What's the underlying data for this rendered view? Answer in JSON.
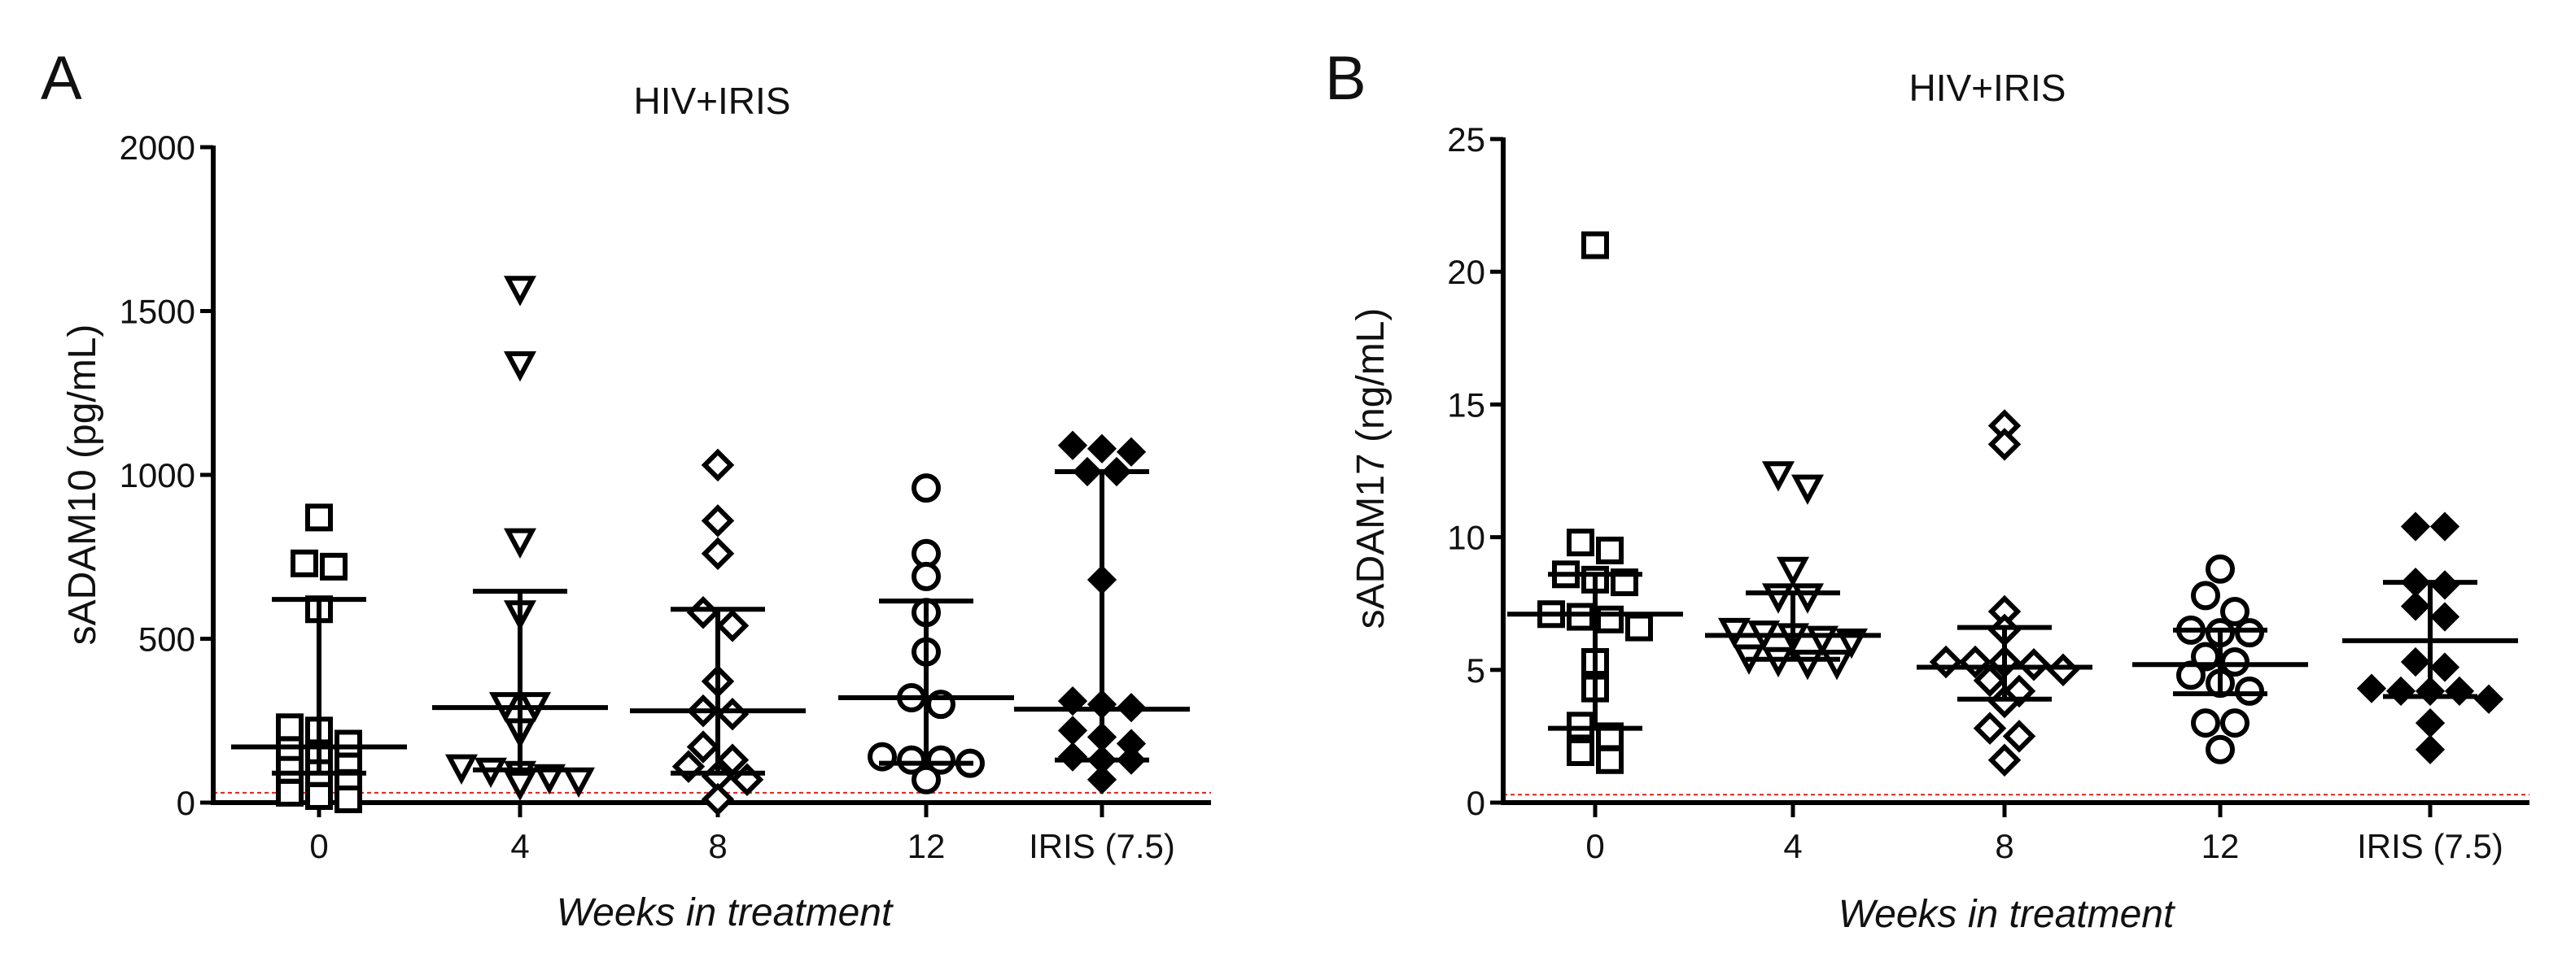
{
  "figure": {
    "panels": [
      {
        "letter": "A"
      },
      {
        "letter": "B"
      }
    ]
  },
  "chart_data": [
    {
      "type": "scatter",
      "panel": "A",
      "title": "HIV+IRIS",
      "xlabel": "Weeks in treatment",
      "ylabel": "sADAM10 (pg/mL)",
      "categories": [
        "0",
        "4",
        "8",
        "12",
        "IRIS (7.5)"
      ],
      "markers": [
        "square",
        "triangle-down",
        "diamond",
        "circle",
        "diamond-filled"
      ],
      "ylim": [
        0,
        2000
      ],
      "yticks": [
        0,
        500,
        1000,
        1500,
        2000
      ],
      "threshold": 30,
      "threshold_color": "#e0201b",
      "series": [
        {
          "category": "0",
          "values": [
            870,
            730,
            720,
            590,
            220,
            230,
            180,
            160,
            150,
            110,
            100,
            90,
            60,
            30,
            20,
            10
          ],
          "median": 170,
          "iqr": [
            90,
            620
          ]
        },
        {
          "category": "4",
          "values": [
            1570,
            1340,
            800,
            580,
            300,
            300,
            220,
            110,
            100,
            90,
            80,
            70,
            60
          ],
          "median": 290,
          "iqr": [
            100,
            645
          ]
        },
        {
          "category": "8",
          "values": [
            1030,
            860,
            760,
            580,
            540,
            370,
            280,
            270,
            170,
            130,
            110,
            80,
            70,
            10
          ],
          "median": 280,
          "iqr": [
            90,
            590
          ]
        },
        {
          "category": "12",
          "values": [
            960,
            760,
            690,
            580,
            460,
            320,
            300,
            140,
            130,
            130,
            120,
            70
          ],
          "median": 320,
          "iqr": [
            120,
            615
          ]
        },
        {
          "category": "IRIS (7.5)",
          "values": [
            1080,
            1070,
            1010,
            1010,
            1090,
            680,
            310,
            300,
            290,
            220,
            200,
            180,
            140,
            130,
            130,
            70
          ],
          "median": 285,
          "iqr": [
            130,
            1010
          ]
        }
      ]
    },
    {
      "type": "scatter",
      "panel": "B",
      "title": "HIV+IRIS",
      "xlabel": "Weeks in treatment",
      "ylabel": "sADAM17 (ng/mL)",
      "categories": [
        "0",
        "4",
        "8",
        "12",
        "IRIS (7.5)"
      ],
      "markers": [
        "square",
        "triangle-down",
        "diamond",
        "circle",
        "diamond-filled"
      ],
      "ylim": [
        0,
        25
      ],
      "yticks": [
        0,
        5,
        10,
        15,
        20,
        25
      ],
      "threshold": 0.3,
      "threshold_color": "#e0201b",
      "series": [
        {
          "category": "0",
          "values": [
            21,
            9.8,
            9.5,
            8.6,
            8.4,
            8.3,
            7.1,
            7.0,
            6.9,
            6.6,
            5.3,
            4.3,
            2.9,
            2.5,
            1.9,
            1.6
          ],
          "median": 7.1,
          "iqr": [
            2.8,
            8.6
          ]
        },
        {
          "category": "4",
          "values": [
            12.4,
            11.9,
            8.8,
            7.8,
            7.8,
            6.5,
            6.4,
            6.3,
            6.2,
            6.1,
            5.5,
            5.4,
            5.3,
            5.3
          ],
          "median": 6.3,
          "iqr": [
            5.4,
            7.9
          ]
        },
        {
          "category": "8",
          "values": [
            14.2,
            13.5,
            7.2,
            6.5,
            5.3,
            5.3,
            5.3,
            5.2,
            5.0,
            4.6,
            4.2,
            3.8,
            2.8,
            2.5,
            1.6
          ],
          "median": 5.1,
          "iqr": [
            3.9,
            6.6
          ]
        },
        {
          "category": "12",
          "values": [
            8.8,
            7.8,
            7.2,
            6.5,
            6.4,
            6.4,
            5.5,
            5.3,
            4.8,
            4.5,
            4.2,
            3.0,
            3.0,
            2.0
          ],
          "median": 5.2,
          "iqr": [
            4.1,
            6.5
          ]
        },
        {
          "category": "IRIS (7.5)",
          "values": [
            10.4,
            10.4,
            8.3,
            8.2,
            7.4,
            7.0,
            5.3,
            5.1,
            4.3,
            4.2,
            4.2,
            4.2,
            3.9,
            3.0,
            2.0
          ],
          "median": 6.1,
          "iqr": [
            4.0,
            8.3
          ]
        }
      ]
    }
  ]
}
